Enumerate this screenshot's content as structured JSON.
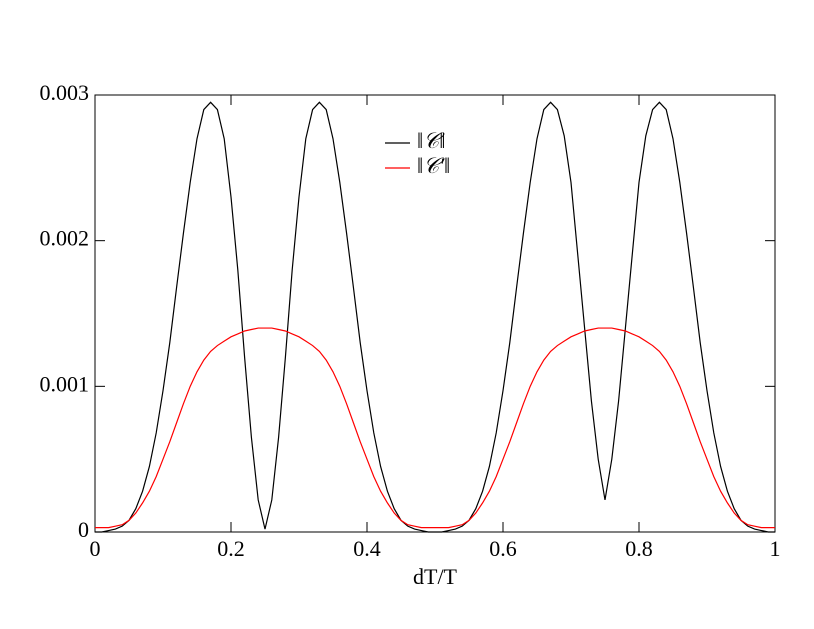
{
  "chart_data": {
    "type": "line",
    "xlabel": "dT/T",
    "x": [
      0,
      0.01,
      0.02,
      0.03,
      0.04,
      0.05,
      0.06,
      0.07,
      0.08,
      0.09,
      0.1,
      0.11,
      0.12,
      0.13,
      0.14,
      0.15,
      0.16,
      0.17,
      0.18,
      0.19,
      0.2,
      0.21,
      0.22,
      0.23,
      0.24,
      0.25,
      0.26,
      0.27,
      0.28,
      0.29,
      0.3,
      0.31,
      0.32,
      0.33,
      0.34,
      0.35,
      0.36,
      0.37,
      0.38,
      0.39,
      0.4,
      0.41,
      0.42,
      0.43,
      0.44,
      0.45,
      0.46,
      0.47,
      0.48,
      0.49,
      0.5,
      0.51,
      0.52,
      0.53,
      0.54,
      0.55,
      0.56,
      0.57,
      0.58,
      0.59,
      0.6,
      0.61,
      0.62,
      0.63,
      0.64,
      0.65,
      0.66,
      0.67,
      0.68,
      0.69,
      0.7,
      0.71,
      0.72,
      0.73,
      0.74,
      0.75,
      0.76,
      0.77,
      0.78,
      0.79,
      0.8,
      0.81,
      0.82,
      0.83,
      0.84,
      0.85,
      0.86,
      0.87,
      0.88,
      0.89,
      0.9,
      0.91,
      0.92,
      0.93,
      0.94,
      0.95,
      0.96,
      0.97,
      0.98,
      0.99,
      1
    ],
    "series": [
      {
        "name": "‖𝒞‖",
        "color": "#000000",
        "values": [
          0,
          0,
          1e-05,
          2e-05,
          4e-05,
          8e-05,
          0.00016,
          0.00028,
          0.00045,
          0.00068,
          0.00097,
          0.0013,
          0.00168,
          0.00205,
          0.0024,
          0.0027,
          0.0029,
          0.00295,
          0.0029,
          0.0027,
          0.0023,
          0.0018,
          0.0012,
          0.00065,
          0.00022,
          2e-05,
          0.00022,
          0.00065,
          0.0012,
          0.0018,
          0.0023,
          0.0027,
          0.0029,
          0.00295,
          0.0029,
          0.0027,
          0.0024,
          0.00205,
          0.00168,
          0.0013,
          0.00097,
          0.00068,
          0.00045,
          0.00028,
          0.00016,
          8e-05,
          4e-05,
          2e-05,
          1e-05,
          0,
          0,
          0,
          1e-05,
          2e-05,
          4e-05,
          8e-05,
          0.00016,
          0.00028,
          0.00045,
          0.00068,
          0.00097,
          0.0013,
          0.00168,
          0.00205,
          0.0024,
          0.0027,
          0.0029,
          0.00295,
          0.0029,
          0.00272,
          0.0024,
          0.0019,
          0.0014,
          0.0009,
          0.0005,
          0.00022,
          0.0005,
          0.0009,
          0.0014,
          0.0019,
          0.0024,
          0.00272,
          0.0029,
          0.00295,
          0.0029,
          0.0027,
          0.0024,
          0.00205,
          0.00168,
          0.0013,
          0.00097,
          0.00068,
          0.00045,
          0.00028,
          0.00016,
          8e-05,
          4e-05,
          2e-05,
          1e-05,
          0,
          0
        ]
      },
      {
        "name": "‖𝒞′‖",
        "color": "#ff0000",
        "values": [
          3e-05,
          3e-05,
          3e-05,
          4e-05,
          5e-05,
          8e-05,
          0.00013,
          0.0002,
          0.00028,
          0.00038,
          0.0005,
          0.00062,
          0.00075,
          0.00088,
          0.001,
          0.0011,
          0.00118,
          0.00124,
          0.00128,
          0.00131,
          0.00134,
          0.00136,
          0.00138,
          0.00139,
          0.0014,
          0.0014,
          0.0014,
          0.00139,
          0.00138,
          0.00136,
          0.00134,
          0.00131,
          0.00128,
          0.00124,
          0.00118,
          0.0011,
          0.001,
          0.00088,
          0.00075,
          0.00062,
          0.0005,
          0.00038,
          0.00028,
          0.0002,
          0.00013,
          8e-05,
          5e-05,
          4e-05,
          3e-05,
          3e-05,
          3e-05,
          3e-05,
          3e-05,
          4e-05,
          5e-05,
          8e-05,
          0.00013,
          0.0002,
          0.00028,
          0.00038,
          0.0005,
          0.00062,
          0.00075,
          0.00088,
          0.001,
          0.0011,
          0.00118,
          0.00124,
          0.00128,
          0.00131,
          0.00134,
          0.00136,
          0.00138,
          0.00139,
          0.0014,
          0.0014,
          0.0014,
          0.00139,
          0.00138,
          0.00136,
          0.00134,
          0.00131,
          0.00128,
          0.00124,
          0.00118,
          0.0011,
          0.001,
          0.00088,
          0.00075,
          0.00062,
          0.0005,
          0.00038,
          0.00028,
          0.0002,
          0.00013,
          8e-05,
          5e-05,
          4e-05,
          3e-05,
          3e-05,
          3e-05
        ]
      }
    ],
    "xlim": [
      0,
      1
    ],
    "xticks": [
      0,
      0.2,
      0.4,
      0.6,
      0.8,
      1
    ],
    "ylim": [
      0,
      0.003
    ],
    "yticks": [
      0,
      0.001,
      0.002,
      0.003
    ],
    "legend": "upper center"
  }
}
